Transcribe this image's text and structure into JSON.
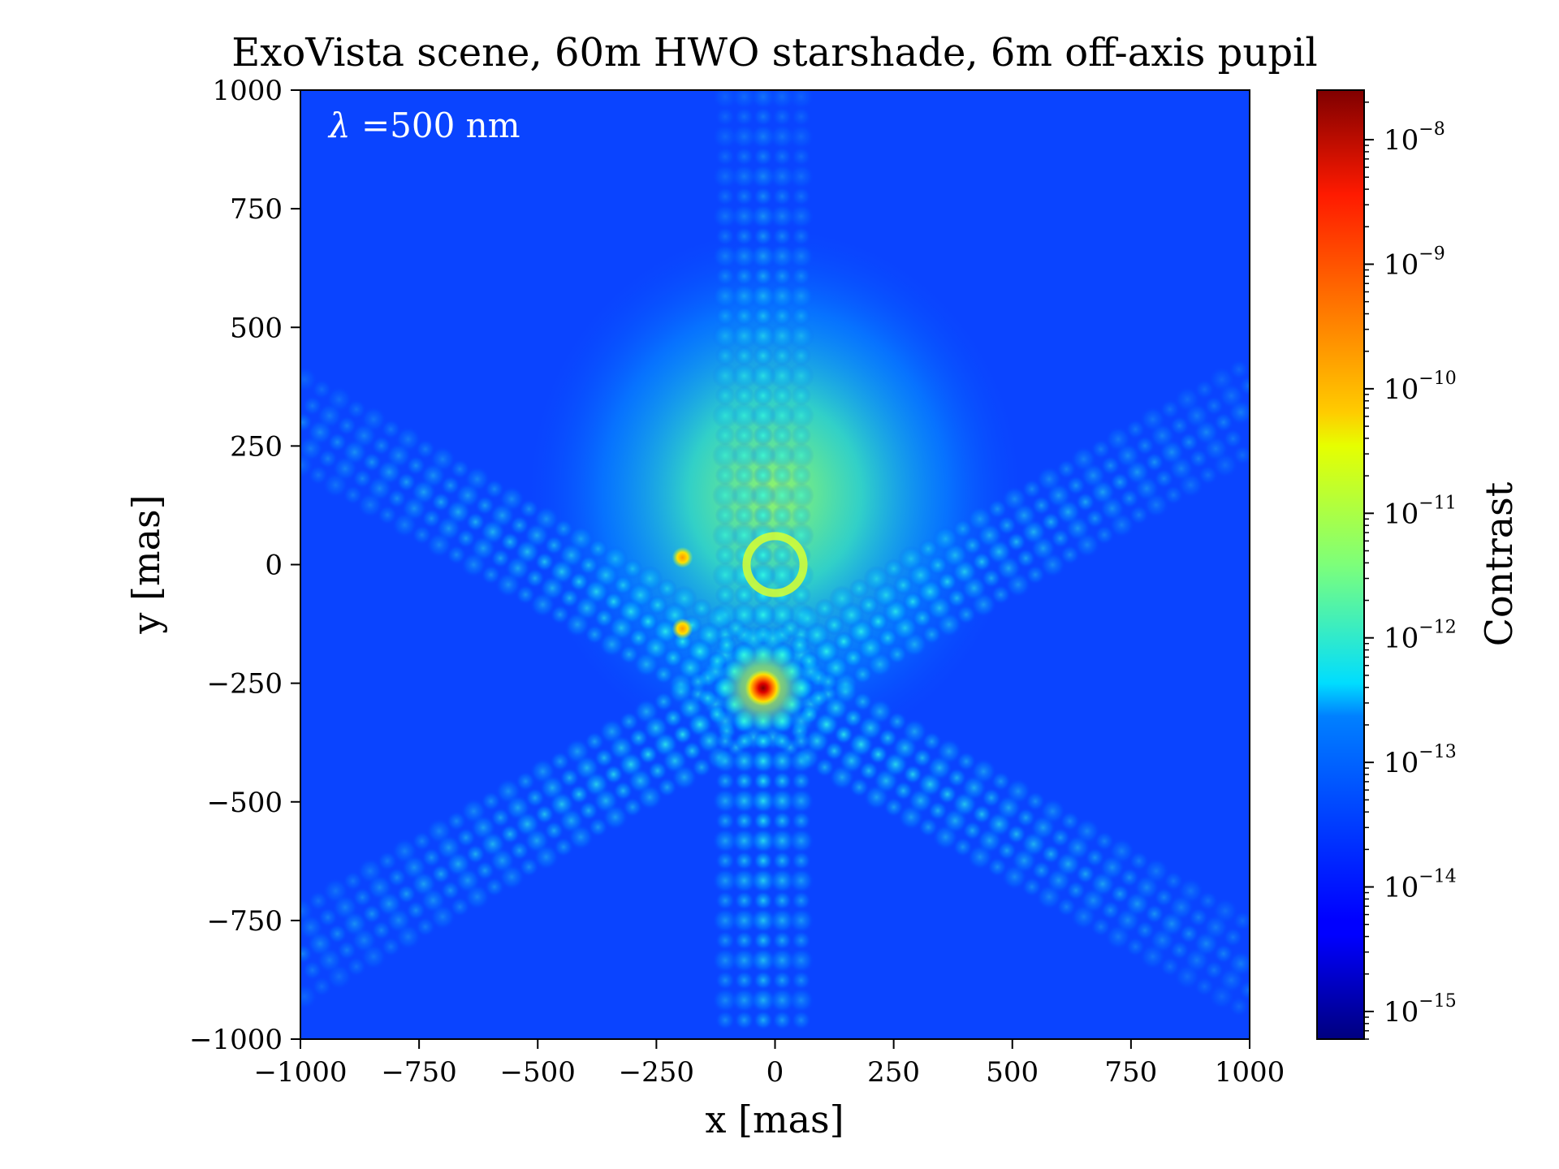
{
  "chart_data": {
    "type": "heatmap",
    "title": "ExoVista scene, 60m HWO starshade, 6m off-axis pupil",
    "xlabel": "x [mas]",
    "ylabel": "y [mas]",
    "xlim": [
      -1000,
      1000
    ],
    "ylim": [
      -1000,
      1000
    ],
    "x_ticks": [
      -1000,
      -750,
      -500,
      -250,
      0,
      250,
      500,
      750,
      1000
    ],
    "y_ticks": [
      -1000,
      -750,
      -500,
      -250,
      0,
      250,
      500,
      750,
      1000
    ],
    "x_tick_labels": [
      "−1000",
      "−750",
      "−500",
      "−250",
      "0",
      "250",
      "500",
      "750",
      "1000"
    ],
    "y_tick_labels": [
      "−1000",
      "−750",
      "−500",
      "−250",
      "0",
      "250",
      "500",
      "750",
      "1000"
    ],
    "annotation": {
      "symbol": "λ",
      "text": " =500 nm"
    },
    "colorbar": {
      "label": "Contrast",
      "scale": "log",
      "colormap": "jet",
      "range": [
        6e-16,
        2.5e-08
      ],
      "tick_exponents": [
        -8,
        -9,
        -10,
        -11,
        -12,
        -13,
        -14,
        -15
      ],
      "tick_base": "10",
      "tick_exp_labels": [
        "−8",
        "−9",
        "−10",
        "−11",
        "−12",
        "−13",
        "−14",
        "−15"
      ]
    },
    "sources": [
      {
        "x": -25,
        "y": -260,
        "contrast": 2e-08
      },
      {
        "x": -195,
        "y": 15,
        "contrast": 2e-10
      },
      {
        "x": -195,
        "y": -135,
        "contrast": 1e-10
      }
    ],
    "features": {
      "central_ring": {
        "x": 0,
        "y": 0,
        "radius": 60,
        "contrast": 6e-11
      },
      "diffuse_glow": {
        "x": 0,
        "y": 150,
        "contrast": 1e-12
      },
      "background_contrast": 1.5e-14,
      "petal_arms_angles_deg": [
        90,
        30,
        150,
        -30,
        -150,
        -90
      ]
    }
  }
}
